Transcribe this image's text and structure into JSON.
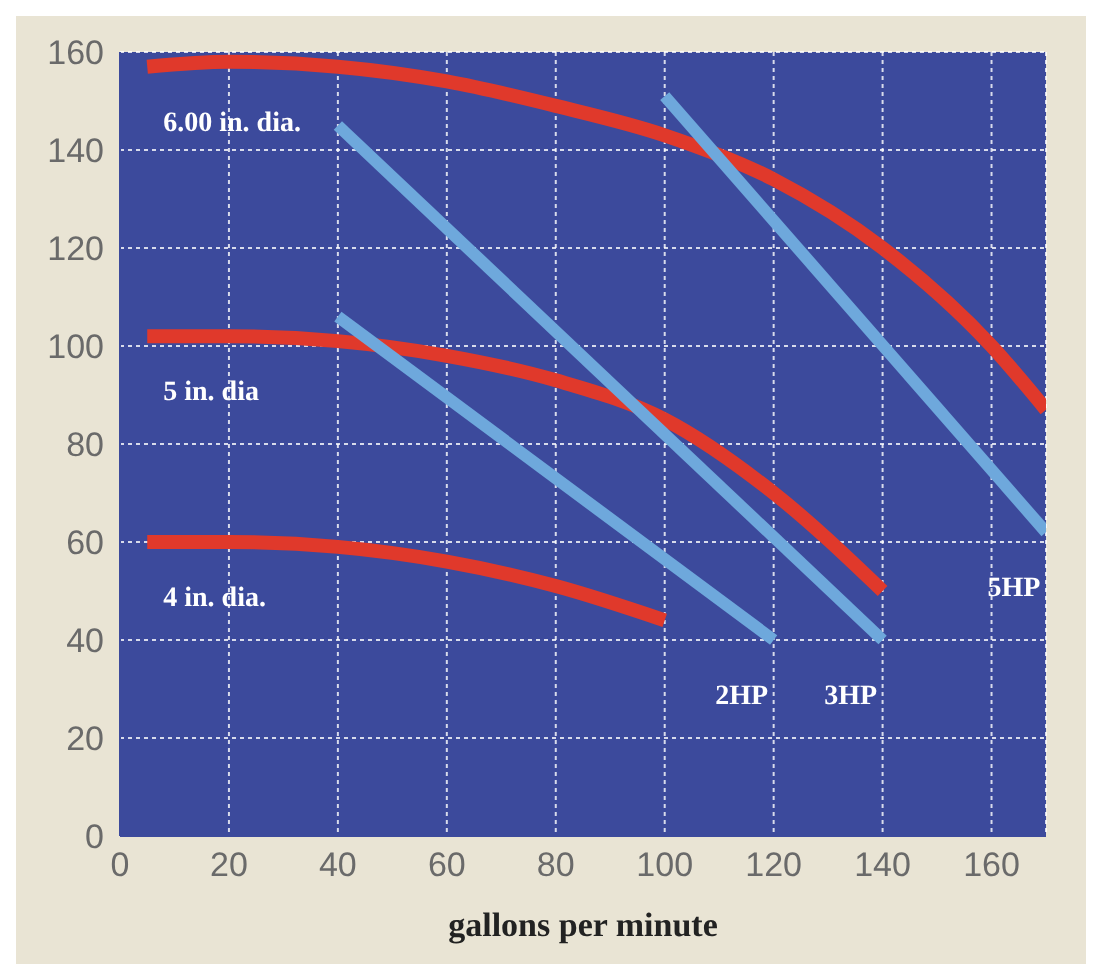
{
  "chart_data": {
    "type": "line",
    "xlabel": "gallons per minute",
    "xlim": [
      0,
      170
    ],
    "ylim": [
      0,
      160
    ],
    "xticks": [
      0,
      20,
      40,
      60,
      80,
      100,
      120,
      140,
      160
    ],
    "yticks": [
      0,
      20,
      40,
      60,
      80,
      100,
      120,
      140,
      160
    ],
    "grid": true,
    "legend": false,
    "marker": "none",
    "line_style": "solid",
    "series": [
      {
        "name": "6.00 in. dia.",
        "color": "#e0392b",
        "x": [
          5,
          20,
          40,
          60,
          80,
          100,
          120,
          140,
          160,
          170
        ],
        "values": [
          157,
          158,
          157,
          154,
          149,
          143,
          134,
          120,
          100,
          87
        ]
      },
      {
        "name": "5 in. dia",
        "color": "#e0392b",
        "x": [
          5,
          20,
          40,
          60,
          80,
          100,
          120,
          140
        ],
        "values": [
          102,
          102,
          101,
          98,
          93,
          85,
          70,
          50
        ]
      },
      {
        "name": "4 in. dia.",
        "color": "#e0392b",
        "x": [
          5,
          20,
          40,
          60,
          80,
          100
        ],
        "values": [
          60,
          60,
          59,
          56,
          51,
          44
        ]
      },
      {
        "name": "2HP",
        "color": "#6ea8dc",
        "x": [
          40,
          120
        ],
        "values": [
          106,
          40
        ]
      },
      {
        "name": "3HP",
        "color": "#6ea8dc",
        "x": [
          40,
          140
        ],
        "values": [
          145,
          40
        ]
      },
      {
        "name": "5HP",
        "color": "#6ea8dc",
        "x": [
          100,
          170
        ],
        "values": [
          151,
          62
        ]
      }
    ]
  }
}
